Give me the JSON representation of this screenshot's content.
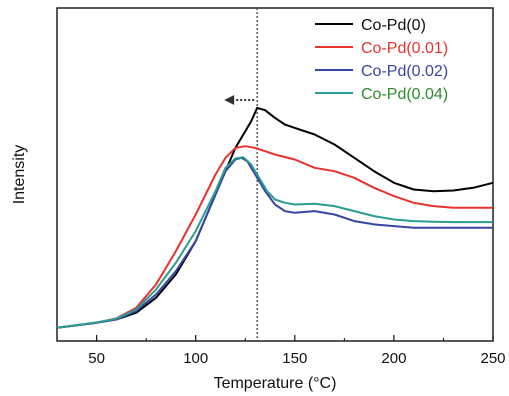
{
  "chart_data": {
    "type": "line",
    "xlabel": "Temperature (°C)",
    "ylabel": "Intensity",
    "xlim": [
      30,
      250
    ],
    "ylim": [
      0,
      1
    ],
    "x_ticks": [
      50,
      100,
      150,
      200,
      250
    ],
    "y_tick_labels": false,
    "grid": false,
    "legend_position": "top-right",
    "reference_line_x": 131,
    "arrow_direction": "left",
    "series": [
      {
        "name": "Co-Pd(0)",
        "color": "#000000",
        "points": [
          [
            30,
            0.04
          ],
          [
            50,
            0.055
          ],
          [
            60,
            0.065
          ],
          [
            70,
            0.085
          ],
          [
            80,
            0.13
          ],
          [
            90,
            0.2
          ],
          [
            100,
            0.3
          ],
          [
            110,
            0.44
          ],
          [
            120,
            0.58
          ],
          [
            125,
            0.63
          ],
          [
            128,
            0.66
          ],
          [
            131,
            0.7
          ],
          [
            135,
            0.693
          ],
          [
            140,
            0.67
          ],
          [
            145,
            0.65
          ],
          [
            150,
            0.64
          ],
          [
            160,
            0.62
          ],
          [
            170,
            0.59
          ],
          [
            180,
            0.55
          ],
          [
            190,
            0.51
          ],
          [
            200,
            0.475
          ],
          [
            210,
            0.455
          ],
          [
            220,
            0.45
          ],
          [
            230,
            0.452
          ],
          [
            240,
            0.46
          ],
          [
            250,
            0.475
          ]
        ]
      },
      {
        "name": "Co-Pd(0.01)",
        "color": "#e8322e",
        "points": [
          [
            30,
            0.04
          ],
          [
            50,
            0.055
          ],
          [
            60,
            0.068
          ],
          [
            70,
            0.1
          ],
          [
            80,
            0.17
          ],
          [
            90,
            0.27
          ],
          [
            100,
            0.38
          ],
          [
            110,
            0.5
          ],
          [
            115,
            0.55
          ],
          [
            120,
            0.58
          ],
          [
            125,
            0.585
          ],
          [
            130,
            0.58
          ],
          [
            135,
            0.57
          ],
          [
            140,
            0.56
          ],
          [
            150,
            0.545
          ],
          [
            160,
            0.52
          ],
          [
            170,
            0.51
          ],
          [
            180,
            0.49
          ],
          [
            190,
            0.46
          ],
          [
            200,
            0.435
          ],
          [
            210,
            0.415
          ],
          [
            220,
            0.405
          ],
          [
            230,
            0.4
          ],
          [
            240,
            0.4
          ],
          [
            250,
            0.4
          ]
        ]
      },
      {
        "name": "Co-Pd(0.02)",
        "color": "#3845a5",
        "points": [
          [
            30,
            0.04
          ],
          [
            50,
            0.055
          ],
          [
            60,
            0.065
          ],
          [
            70,
            0.09
          ],
          [
            80,
            0.14
          ],
          [
            90,
            0.21
          ],
          [
            100,
            0.3
          ],
          [
            110,
            0.44
          ],
          [
            115,
            0.51
          ],
          [
            120,
            0.545
          ],
          [
            123,
            0.55
          ],
          [
            126,
            0.54
          ],
          [
            130,
            0.5
          ],
          [
            135,
            0.45
          ],
          [
            140,
            0.41
          ],
          [
            145,
            0.39
          ],
          [
            150,
            0.385
          ],
          [
            160,
            0.39
          ],
          [
            170,
            0.38
          ],
          [
            180,
            0.36
          ],
          [
            190,
            0.35
          ],
          [
            200,
            0.345
          ],
          [
            210,
            0.34
          ],
          [
            220,
            0.34
          ],
          [
            230,
            0.34
          ],
          [
            240,
            0.34
          ],
          [
            250,
            0.34
          ]
        ]
      },
      {
        "name": "Co-Pd(0.04)",
        "color": "#2a9d8f",
        "points": [
          [
            30,
            0.04
          ],
          [
            50,
            0.056
          ],
          [
            60,
            0.067
          ],
          [
            70,
            0.095
          ],
          [
            80,
            0.155
          ],
          [
            90,
            0.235
          ],
          [
            100,
            0.33
          ],
          [
            110,
            0.45
          ],
          [
            115,
            0.52
          ],
          [
            120,
            0.548
          ],
          [
            124,
            0.552
          ],
          [
            128,
            0.53
          ],
          [
            132,
            0.49
          ],
          [
            136,
            0.45
          ],
          [
            140,
            0.425
          ],
          [
            145,
            0.415
          ],
          [
            150,
            0.41
          ],
          [
            160,
            0.412
          ],
          [
            170,
            0.405
          ],
          [
            180,
            0.39
          ],
          [
            190,
            0.375
          ],
          [
            200,
            0.365
          ],
          [
            210,
            0.36
          ],
          [
            220,
            0.358
          ],
          [
            230,
            0.357
          ],
          [
            240,
            0.357
          ],
          [
            250,
            0.357
          ]
        ]
      }
    ],
    "legend": [
      {
        "label": "Co-Pd(0)",
        "color": "#000000",
        "text_color": "#111111"
      },
      {
        "label": "Co-Pd(0.01)",
        "color": "#e8322e",
        "text_color": "#e8322e"
      },
      {
        "label": "Co-Pd(0.02)",
        "color": "#3845a5",
        "text_color": "#3845a5"
      },
      {
        "label": "Co-Pd(0.04)",
        "color": "#2a9d8f",
        "text_color": "#2e8b2e"
      }
    ]
  }
}
